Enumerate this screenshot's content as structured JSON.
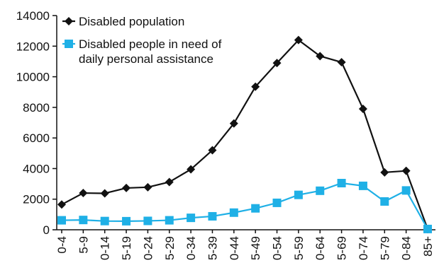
{
  "chart_data": {
    "type": "line",
    "title": "",
    "xlabel": "",
    "ylabel": "",
    "categories": [
      "0-4",
      "5-9",
      "0-14",
      "5-19",
      "0-24",
      "5-29",
      "0-34",
      "5-39",
      "0-44",
      "5-49",
      "0-54",
      "5-59",
      "0-64",
      "5-69",
      "0-74",
      "5-79",
      "0-84",
      "85+"
    ],
    "ylim": [
      0,
      14000
    ],
    "yticks": [
      0,
      2000,
      4000,
      6000,
      8000,
      10000,
      12000,
      14000
    ],
    "grid": false,
    "legend_position": "top-left",
    "series": [
      {
        "name": "Disabled population",
        "color": "#111111",
        "marker": "diamond",
        "values": [
          1650,
          2400,
          2380,
          2730,
          2780,
          3120,
          3950,
          5200,
          6950,
          9350,
          10900,
          12400,
          11350,
          10950,
          7900,
          3750,
          3850,
          50
        ]
      },
      {
        "name": "Disabled people in need of daily personal assistance",
        "name_lines": [
          "Disabled people in need of",
          "daily personal assistance"
        ],
        "color": "#1fb0e6",
        "marker": "square",
        "values": [
          620,
          640,
          570,
          560,
          580,
          620,
          780,
          880,
          1120,
          1400,
          1760,
          2280,
          2550,
          3050,
          2870,
          1850,
          2570,
          50
        ]
      }
    ]
  }
}
